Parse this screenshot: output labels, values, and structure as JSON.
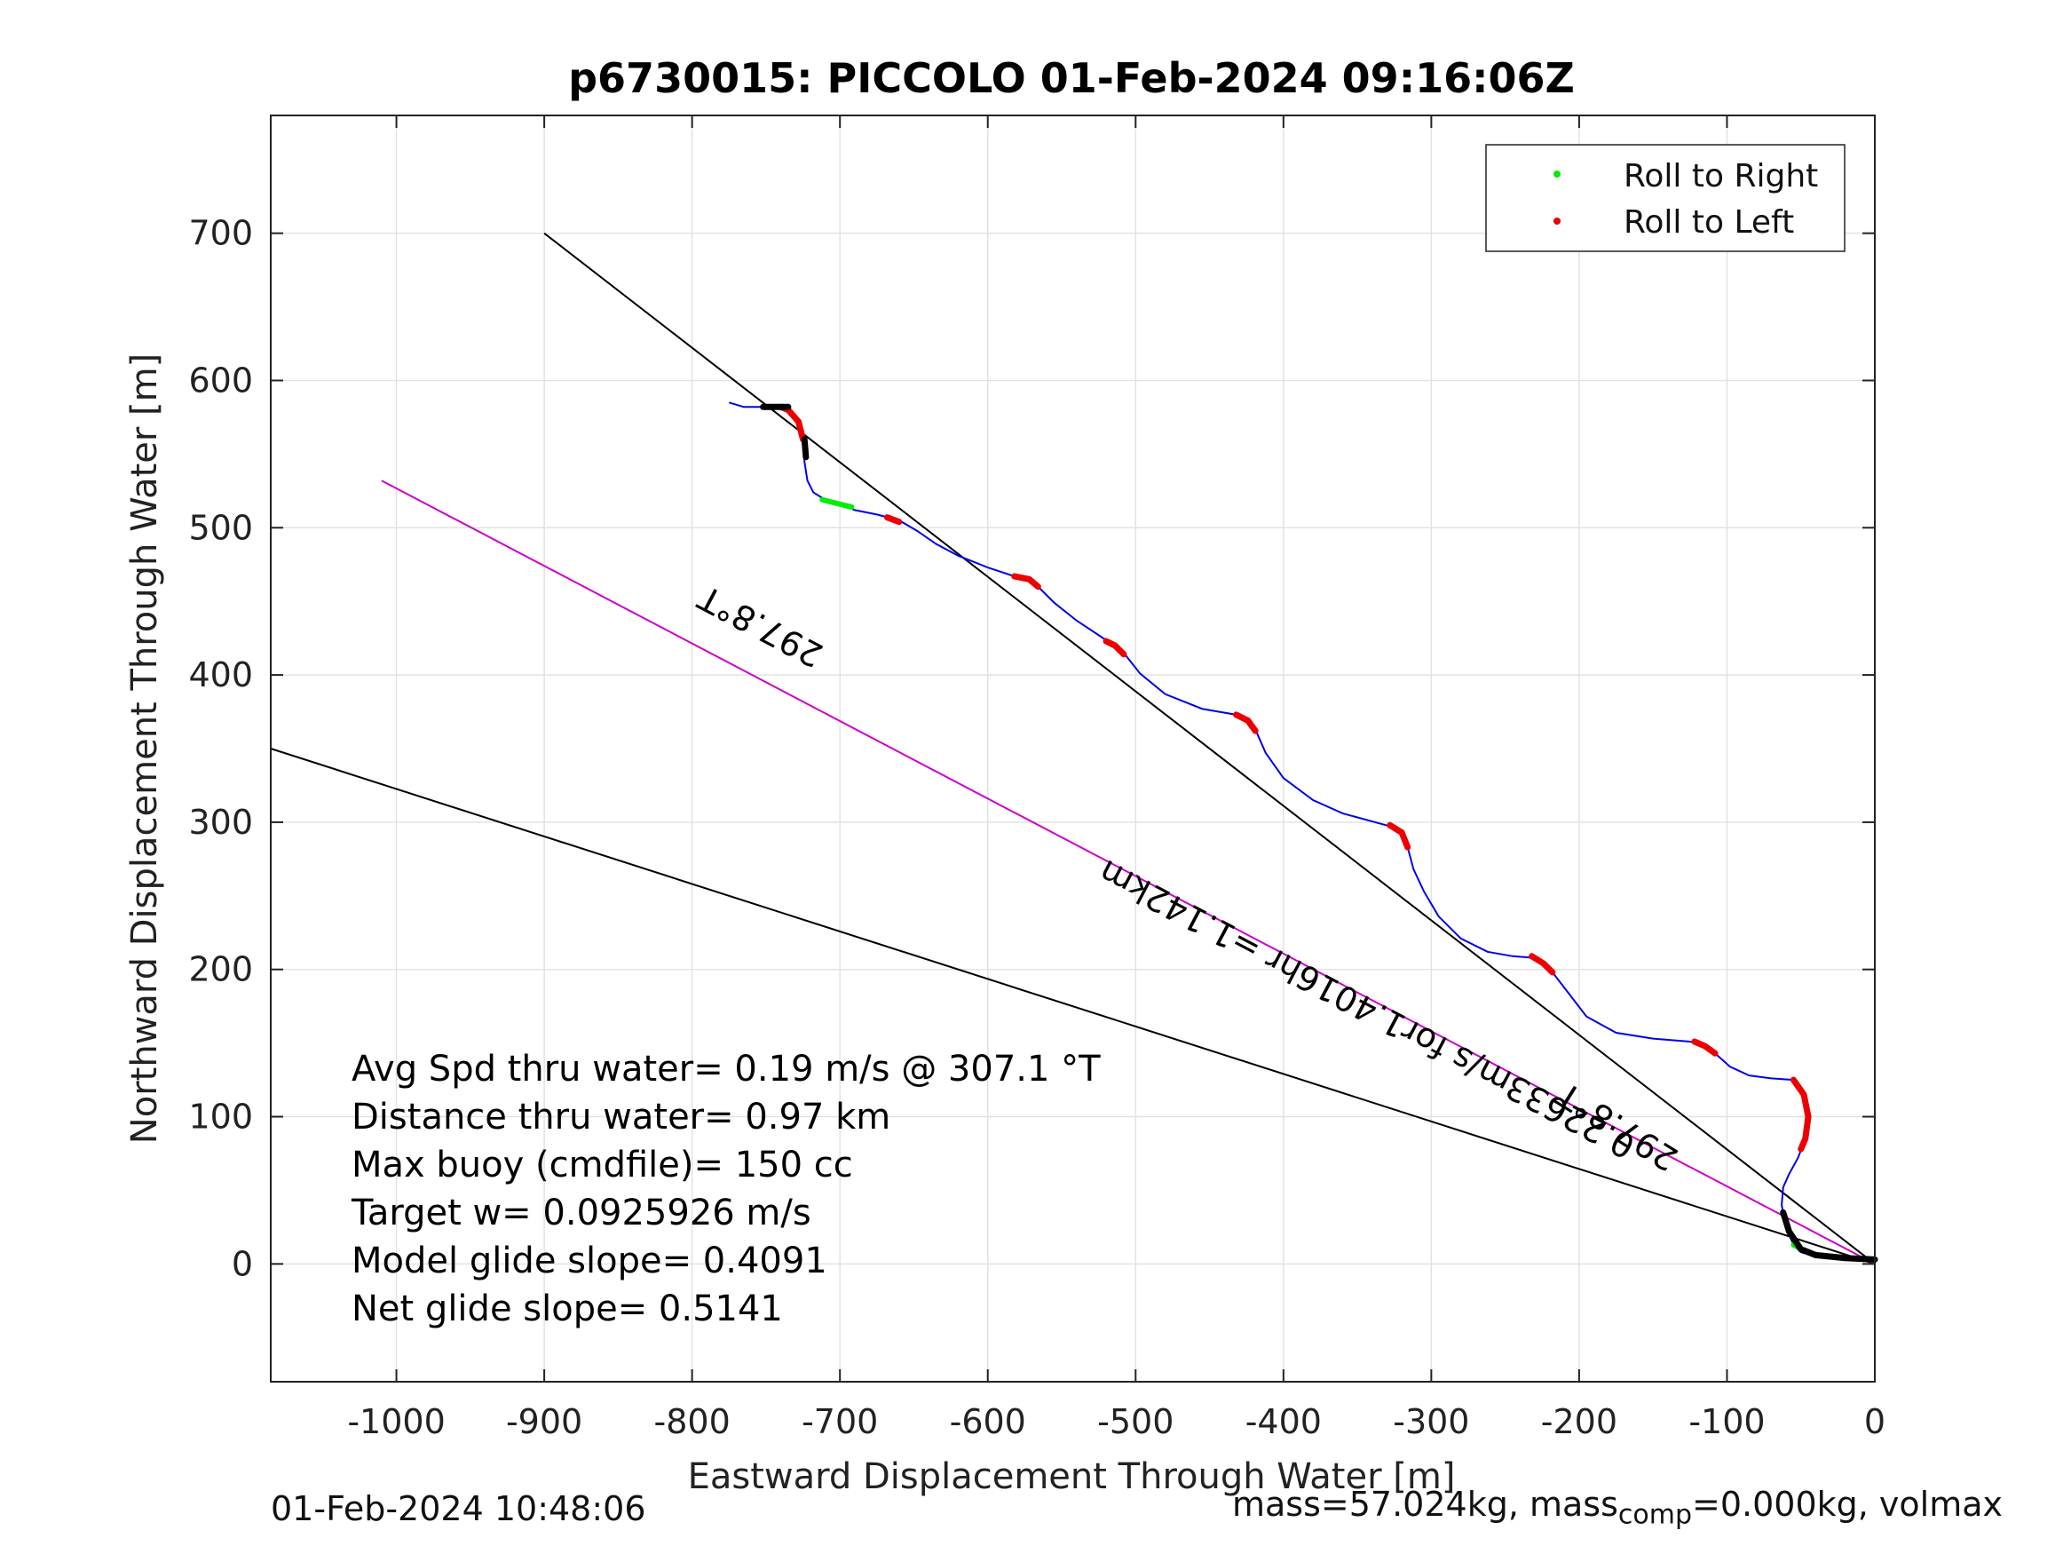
{
  "chart_data": {
    "type": "line",
    "title": "p6730015: PICCOLO 01-Feb-2024 09:16:06Z",
    "xlabel": "Eastward Displacement Through Water [m]",
    "ylabel": "Northward Displacement Through Water [m]",
    "xlim": [
      -1085,
      0
    ],
    "ylim": [
      -80,
      780
    ],
    "xticks": [
      -1000,
      -900,
      -800,
      -700,
      -600,
      -500,
      -400,
      -300,
      -200,
      -100,
      0
    ],
    "yticks": [
      0,
      100,
      200,
      300,
      400,
      500,
      600,
      700
    ],
    "grid": true,
    "legend": {
      "placement": "top-right",
      "entries": [
        "Roll to Right",
        "Roll to Left"
      ]
    },
    "colors": {
      "track": "#0000ee",
      "roll_right": "#00ee00",
      "roll_left": "#ee0000",
      "magenta_line": "#cc00cc",
      "lines": "#000000"
    },
    "series": [
      {
        "role": "track",
        "x": [
          -775,
          -765,
          -745,
          -735,
          -728,
          -725,
          -724,
          -722,
          -718,
          -710,
          -700,
          -690,
          -675,
          -660,
          -648,
          -635,
          -620,
          -600,
          -582,
          -572,
          -566,
          -555,
          -540,
          -522,
          -514,
          -508,
          -497,
          -480,
          -455,
          -432,
          -424,
          -419,
          -412,
          -400,
          -380,
          -360,
          -338,
          -327,
          -320,
          -316,
          -312,
          -305,
          -295,
          -280,
          -262,
          -245,
          -232,
          -224,
          -218,
          -208,
          -195,
          -175,
          -150,
          -125,
          -115,
          -108,
          -98,
          -85,
          -70,
          -55,
          -48,
          -45,
          -47,
          -52,
          -58,
          -62,
          -63,
          -61,
          -58,
          -55,
          -50,
          -40,
          -30,
          -20,
          -10,
          0
        ],
        "y": [
          585,
          582,
          582,
          580,
          572,
          560,
          545,
          532,
          524,
          519,
          516,
          512,
          509,
          505,
          498,
          489,
          481,
          473,
          467,
          465,
          460,
          449,
          437,
          425,
          421,
          415,
          401,
          387,
          377,
          373,
          369,
          363,
          347,
          330,
          315,
          306,
          300,
          297,
          293,
          283,
          268,
          253,
          236,
          221,
          212,
          209,
          208,
          204,
          198,
          185,
          168,
          157,
          153,
          151,
          148,
          143,
          134,
          128,
          126,
          125,
          115,
          100,
          85,
          72,
          61,
          52,
          40,
          30,
          20,
          13,
          8,
          5,
          4,
          3,
          3,
          3
        ]
      },
      {
        "role": "line",
        "x": [
          -900,
          0
        ],
        "y": [
          700,
          0
        ]
      },
      {
        "role": "line",
        "x": [
          -1085,
          0
        ],
        "y": [
          350,
          0
        ]
      },
      {
        "role": "magenta",
        "x": [
          -1010,
          0
        ],
        "y": [
          532,
          0
        ]
      }
    ],
    "roll_left_segments": [
      [
        -738,
        -732,
        -728,
        -725
      ],
      [
        -668,
        -660
      ],
      [
        -580,
        -574,
        -570
      ],
      [
        -520,
        -514,
        -508
      ],
      [
        -432,
        -426,
        -420
      ],
      [
        -328,
        -322,
        -318,
        -315
      ],
      [
        -232,
        -226,
        -220
      ],
      [
        -122,
        -116,
        -110
      ],
      [
        -55,
        -50,
        -47,
        -47,
        -50
      ]
    ],
    "annotations": [
      {
        "text": "297.8°T",
        "x": -750,
        "y": 440,
        "angle": 207.8
      },
      {
        "text": "297.8°T",
        "x": -170,
        "y": 100,
        "angle": 212
      },
      {
        "text": "0.22633m/s for1.4016hr =1.142km",
        "x": -340,
        "y": 180,
        "angle": 207.8
      }
    ],
    "stats": [
      "Avg Spd thru water=  0.19 m/s @ 307.1 °T",
      "Distance thru water=  0.97 km",
      "Max buoy (cmdfile)= 150 cc",
      "Target w= 0.0925926 m/s",
      "Model glide slope= 0.4091",
      "Net glide slope= 0.5141"
    ]
  },
  "footer": {
    "left": "01-Feb-2024 10:48:06",
    "right_a": "mass=57.024kg, mass",
    "right_sub": "comp",
    "right_b": "=0.000kg, volmax"
  }
}
